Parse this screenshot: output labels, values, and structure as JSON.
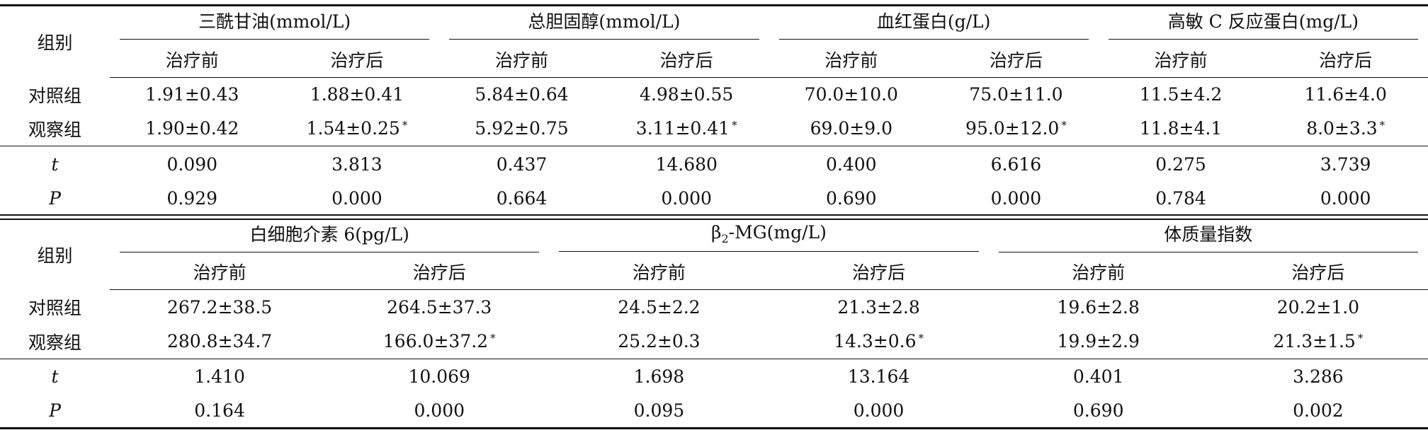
{
  "tables": [
    {
      "group_label": "组别",
      "groups": [
        "三酰甘油(mmol/L)",
        "总胆固醇(mmol/L)",
        "血红蛋白(g/L)",
        "高敏 C 反应蛋白(mg/L)"
      ],
      "sub_headers": [
        "治疗前",
        "治疗后",
        "治疗前",
        "治疗后",
        "治疗前",
        "治疗后",
        "治疗前",
        "治疗后"
      ],
      "rows": [
        {
          "label": "对照组",
          "cells": [
            "1.91±0.43",
            "1.88±0.41",
            "5.84±0.64",
            "4.98±0.55",
            "70.0±10.0",
            "75.0±11.0",
            "11.5±4.2",
            "11.6±4.0"
          ]
        },
        {
          "label": "观察组",
          "cells": [
            "1.90±0.42",
            {
              "text": "1.54±0.25",
              "note": "*"
            },
            "5.92±0.75",
            {
              "text": "3.11±0.41",
              "note": "*"
            },
            "69.0±9.0",
            {
              "text": "95.0±12.0",
              "note": "*"
            },
            "11.8±4.1",
            {
              "text": "8.0±3.3",
              "note": "*"
            }
          ]
        },
        {
          "label": "t",
          "cells": [
            "0.090",
            "3.813",
            "0.437",
            "14.680",
            "0.400",
            "6.616",
            "0.275",
            "3.739"
          ]
        },
        {
          "label": "P",
          "cells": [
            "0.929",
            "0.000",
            "0.664",
            "0.000",
            "0.690",
            "0.000",
            "0.784",
            "0.000"
          ]
        }
      ]
    },
    {
      "group_label": "组别",
      "groups": [
        "白细胞介素 6(pg/L)",
        {
          "pre": "β",
          "sub": "2",
          "post": "-MG(mg/L)"
        },
        "体质量指数"
      ],
      "sub_headers": [
        "治疗前",
        "治疗后",
        "治疗前",
        "治疗后",
        "治疗前",
        "治疗后"
      ],
      "rows": [
        {
          "label": "对照组",
          "cells": [
            "267.2±38.5",
            "264.5±37.3",
            "24.5±2.2",
            "21.3±2.8",
            "19.6±2.8",
            "20.2±1.0"
          ]
        },
        {
          "label": "观察组",
          "cells": [
            "280.8±34.7",
            {
              "text": "166.0±37.2",
              "note": "*"
            },
            "25.2±0.3",
            {
              "text": "14.3±0.6",
              "note": "*"
            },
            "19.9±2.9",
            {
              "text": "21.3±1.5",
              "note": "*"
            }
          ]
        },
        {
          "label": "t",
          "cells": [
            "1.410",
            "10.069",
            "1.698",
            "13.164",
            "0.401",
            "3.286"
          ]
        },
        {
          "label": "P",
          "cells": [
            "0.164",
            "0.000",
            "0.095",
            "0.000",
            "0.690",
            "0.002"
          ]
        }
      ]
    }
  ]
}
